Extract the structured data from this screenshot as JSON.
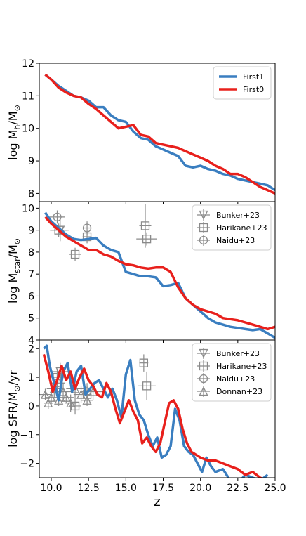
{
  "chart_data": [
    {
      "type": "line",
      "ylabel": "log M_h/M_⊙",
      "ylabel_parts": {
        "base": "log M",
        "sub": "h",
        "rest": "/M",
        "sun": "⊙"
      },
      "xlim": [
        9.2,
        25.0
      ],
      "ylim": [
        7.75,
        12.0
      ],
      "yticks": [
        8,
        9,
        10,
        11,
        12
      ],
      "legend_position": "top-right",
      "series": [
        {
          "name": "First1",
          "color": "#3a7ec0",
          "x": [
            9.6,
            10.0,
            10.5,
            11.0,
            11.5,
            12.0,
            12.5,
            13.0,
            13.5,
            14.0,
            14.5,
            15.0,
            15.5,
            16.0,
            16.5,
            17.0,
            17.5,
            18.0,
            18.5,
            19.0,
            19.5,
            20.0,
            20.5,
            21.0,
            21.5,
            22.0,
            22.5,
            23.0,
            23.5,
            24.0,
            24.5,
            25.0
          ],
          "y": [
            11.65,
            11.5,
            11.3,
            11.15,
            11.0,
            10.95,
            10.85,
            10.65,
            10.65,
            10.4,
            10.25,
            10.2,
            9.9,
            9.7,
            9.65,
            9.45,
            9.35,
            9.25,
            9.15,
            8.85,
            8.8,
            8.85,
            8.75,
            8.7,
            8.6,
            8.55,
            8.45,
            8.4,
            8.35,
            8.3,
            8.25,
            8.1
          ]
        },
        {
          "name": "First0",
          "color": "#e8201c",
          "x": [
            9.6,
            10.0,
            10.5,
            11.0,
            11.5,
            12.0,
            12.5,
            13.0,
            13.5,
            14.0,
            14.5,
            15.0,
            15.5,
            16.0,
            16.5,
            17.0,
            17.5,
            18.0,
            18.5,
            19.0,
            19.5,
            20.0,
            20.5,
            21.0,
            21.5,
            22.0,
            22.5,
            23.0,
            23.5,
            24.0,
            24.5,
            25.0
          ],
          "y": [
            11.65,
            11.5,
            11.25,
            11.1,
            11.0,
            10.95,
            10.75,
            10.6,
            10.4,
            10.2,
            10.0,
            10.05,
            10.1,
            9.8,
            9.75,
            9.55,
            9.5,
            9.45,
            9.4,
            9.3,
            9.2,
            9.1,
            9.0,
            8.85,
            8.75,
            8.6,
            8.6,
            8.5,
            8.35,
            8.2,
            8.1,
            8.0
          ]
        }
      ]
    },
    {
      "type": "line",
      "ylabel": "log M_star/M_⊙",
      "ylabel_parts": {
        "base": "log M",
        "sub": "star",
        "rest": "/M",
        "sun": "⊙"
      },
      "xlim": [
        9.2,
        25.0
      ],
      "ylim": [
        4.0,
        10.3
      ],
      "yticks": [
        4,
        5,
        6,
        7,
        8,
        9,
        10
      ],
      "legend_position": "top-right",
      "series": [
        {
          "name": "First1",
          "color": "#3a7ec0",
          "x": [
            9.6,
            10.0,
            10.5,
            11.0,
            11.5,
            12.0,
            12.5,
            13.0,
            13.5,
            14.0,
            14.5,
            15.0,
            15.5,
            16.0,
            16.5,
            17.0,
            17.5,
            18.0,
            18.5,
            19.0,
            19.5,
            20.0,
            20.5,
            21.0,
            21.5,
            22.0,
            22.5,
            23.0,
            23.5,
            24.0,
            24.5,
            25.0
          ],
          "y": [
            9.8,
            9.4,
            9.1,
            8.8,
            8.6,
            8.55,
            8.6,
            8.65,
            8.3,
            8.1,
            8.0,
            7.1,
            7.0,
            6.9,
            6.9,
            6.85,
            6.45,
            6.5,
            6.6,
            5.9,
            5.6,
            5.3,
            5.0,
            4.8,
            4.7,
            4.6,
            4.55,
            4.5,
            4.45,
            4.5,
            4.3,
            4.1
          ]
        },
        {
          "name": "First0",
          "color": "#e8201c",
          "x": [
            9.6,
            10.0,
            10.5,
            11.0,
            11.5,
            12.0,
            12.5,
            13.0,
            13.5,
            14.0,
            14.5,
            15.0,
            15.5,
            16.0,
            16.5,
            17.0,
            17.5,
            18.0,
            18.5,
            19.0,
            19.5,
            20.0,
            20.5,
            21.0,
            21.5,
            22.0,
            22.5,
            23.0,
            23.5,
            24.0,
            24.5,
            25.0
          ],
          "y": [
            9.6,
            9.3,
            9.0,
            8.7,
            8.5,
            8.3,
            8.1,
            8.1,
            7.9,
            7.8,
            7.6,
            7.45,
            7.4,
            7.3,
            7.25,
            7.3,
            7.3,
            7.1,
            6.4,
            5.9,
            5.6,
            5.4,
            5.3,
            5.2,
            5.0,
            4.95,
            4.9,
            4.8,
            4.7,
            4.6,
            4.5,
            4.6
          ]
        }
      ],
      "observations": {
        "Bunker+23": {
          "marker": "triangle-down",
          "points": [
            {
              "x": 10.6,
              "y": 9.0,
              "xerr": 0.6,
              "yerr": 0.5
            }
          ]
        },
        "Harikane+23": {
          "marker": "square",
          "points": [
            {
              "x": 10.5,
              "y": 9.0,
              "xerr": 0.6,
              "yerr": 0.3
            },
            {
              "x": 11.6,
              "y": 7.9,
              "xerr": 0.4,
              "yerr": 0.3
            },
            {
              "x": 12.4,
              "y": 8.7,
              "xerr": 0.3,
              "yerr": 0.3
            },
            {
              "x": 16.3,
              "y": 9.2,
              "xerr": 0.4,
              "yerr": 1.0
            },
            {
              "x": 16.4,
              "y": 8.6,
              "xerr": 0.7,
              "yerr": 0.3
            }
          ]
        },
        "Naidu+23": {
          "marker": "circle",
          "points": [
            {
              "x": 10.4,
              "y": 9.6,
              "xerr": 0.5,
              "yerr": 0.3
            },
            {
              "x": 12.4,
              "y": 9.1,
              "xerr": 0.3,
              "yerr": 0.3
            }
          ]
        }
      }
    },
    {
      "type": "line",
      "ylabel": "log SFR/M_⊙/yr",
      "ylabel_parts": {
        "base": "log SFR/M",
        "sun": "⊙",
        "rest": "/yr"
      },
      "xlabel": "z",
      "xlim": [
        9.2,
        25.0
      ],
      "ylim": [
        -2.5,
        2.3
      ],
      "yticks": [
        -2,
        -1,
        0,
        1,
        2
      ],
      "xticks": [
        10.0,
        12.5,
        15.0,
        17.5,
        20.0,
        22.5,
        25.0
      ],
      "xticklabels": [
        "10.0",
        "12.5",
        "15.0",
        "17.5",
        "20.0",
        "22.5",
        "25.0"
      ],
      "legend_position": "top-right",
      "series": [
        {
          "name": "First1",
          "color": "#3a7ec0",
          "x": [
            9.5,
            9.7,
            9.9,
            10.2,
            10.5,
            10.8,
            11.1,
            11.4,
            11.7,
            12.0,
            12.3,
            12.6,
            12.9,
            13.2,
            13.5,
            13.8,
            14.1,
            14.4,
            14.7,
            15.0,
            15.3,
            15.6,
            15.9,
            16.2,
            16.5,
            16.8,
            17.1,
            17.4,
            17.7,
            18.0,
            18.3,
            18.6,
            18.9,
            19.2,
            19.5,
            19.8,
            20.1,
            20.4,
            20.7,
            21.0,
            21.5,
            22.0,
            22.5,
            23.0,
            23.5,
            24.0,
            24.5
          ],
          "y": [
            2.0,
            2.1,
            1.4,
            0.8,
            0.2,
            1.2,
            1.5,
            0.5,
            1.2,
            1.4,
            0.4,
            0.6,
            0.8,
            0.9,
            0.6,
            0.3,
            0.6,
            0.2,
            -0.4,
            1.1,
            1.6,
            0.2,
            -0.3,
            -0.5,
            -1.0,
            -1.4,
            -1.1,
            -1.8,
            -1.7,
            -1.4,
            -0.1,
            -0.5,
            -1.4,
            -1.6,
            -1.7,
            -2.0,
            -2.3,
            -1.8,
            -2.1,
            -2.3,
            -2.2,
            -2.6,
            -2.7,
            -2.4,
            -2.5,
            -2.6,
            -2.4
          ]
        },
        {
          "name": "First0",
          "color": "#e8201c",
          "x": [
            9.5,
            9.8,
            10.1,
            10.4,
            10.7,
            11.0,
            11.3,
            11.6,
            11.9,
            12.2,
            12.5,
            12.8,
            13.1,
            13.4,
            13.7,
            14.0,
            14.3,
            14.6,
            14.9,
            15.2,
            15.5,
            15.8,
            16.1,
            16.4,
            16.7,
            17.0,
            17.3,
            17.6,
            17.9,
            18.2,
            18.5,
            18.8,
            19.1,
            19.4,
            19.7,
            20.0,
            20.5,
            21.0,
            21.5,
            22.0,
            22.5,
            23.0,
            23.5,
            24.0,
            24.5
          ],
          "y": [
            1.8,
            1.2,
            0.5,
            0.9,
            1.4,
            0.9,
            1.2,
            0.6,
            1.0,
            1.3,
            0.9,
            0.7,
            0.4,
            0.3,
            0.8,
            0.5,
            -0.1,
            -0.6,
            -0.2,
            0.2,
            -0.2,
            -0.5,
            -1.3,
            -1.1,
            -1.4,
            -1.6,
            -1.3,
            -0.6,
            0.1,
            0.2,
            -0.1,
            -0.8,
            -1.3,
            -1.6,
            -1.7,
            -1.8,
            -1.9,
            -1.9,
            -2.0,
            -2.1,
            -2.2,
            -2.4,
            -2.3,
            -2.5,
            -2.6
          ]
        }
      ],
      "observations": {
        "Bunker+23": {
          "marker": "triangle-down",
          "points": [
            {
              "x": 10.6,
              "y": 1.2,
              "xerr": 0.6,
              "yerr": 0.3
            }
          ]
        },
        "Harikane+23": {
          "marker": "square",
          "points": [
            {
              "x": 10.4,
              "y": 1.0,
              "xerr": 0.5,
              "yerr": 0.3
            },
            {
              "x": 11.6,
              "y": 0.0,
              "xerr": 0.4,
              "yerr": 0.3
            },
            {
              "x": 12.4,
              "y": 0.4,
              "xerr": 0.3,
              "yerr": 0.3
            },
            {
              "x": 16.2,
              "y": 1.5,
              "xerr": 0.3,
              "yerr": 0.3
            },
            {
              "x": 16.4,
              "y": 0.7,
              "xerr": 0.6,
              "yerr": 0.5
            }
          ]
        },
        "Naidu+23": {
          "marker": "circle",
          "points": [
            {
              "x": 10.4,
              "y": 0.8,
              "xerr": 0.5,
              "yerr": 0.3
            },
            {
              "x": 12.4,
              "y": 0.5,
              "xerr": 0.3,
              "yerr": 0.3
            }
          ]
        },
        "Donnan+23": {
          "marker": "triangle-up",
          "points": [
            {
              "x": 9.6,
              "y": 0.4,
              "xerr": 0.4,
              "yerr": 0.2
            },
            {
              "x": 9.8,
              "y": 0.1,
              "xerr": 0.3,
              "yerr": 0.2
            },
            {
              "x": 10.0,
              "y": 0.3,
              "xerr": 0.4,
              "yerr": 0.3
            },
            {
              "x": 10.2,
              "y": 0.6,
              "xerr": 0.5,
              "yerr": 0.3
            },
            {
              "x": 10.5,
              "y": 0.2,
              "xerr": 0.4,
              "yerr": 0.2
            },
            {
              "x": 10.8,
              "y": 0.5,
              "xerr": 0.6,
              "yerr": 0.3
            },
            {
              "x": 11.0,
              "y": 0.3,
              "xerr": 0.5,
              "yerr": 0.2
            },
            {
              "x": 11.3,
              "y": 0.1,
              "xerr": 0.4,
              "yerr": 0.3
            },
            {
              "x": 11.6,
              "y": 0.6,
              "xerr": 0.6,
              "yerr": 0.3
            },
            {
              "x": 12.0,
              "y": 0.4,
              "xerr": 0.5,
              "yerr": 0.3
            },
            {
              "x": 12.4,
              "y": 0.2,
              "xerr": 0.4,
              "yerr": 0.2
            },
            {
              "x": 12.8,
              "y": 0.5,
              "xerr": 0.8,
              "yerr": 0.3
            }
          ]
        }
      }
    }
  ]
}
